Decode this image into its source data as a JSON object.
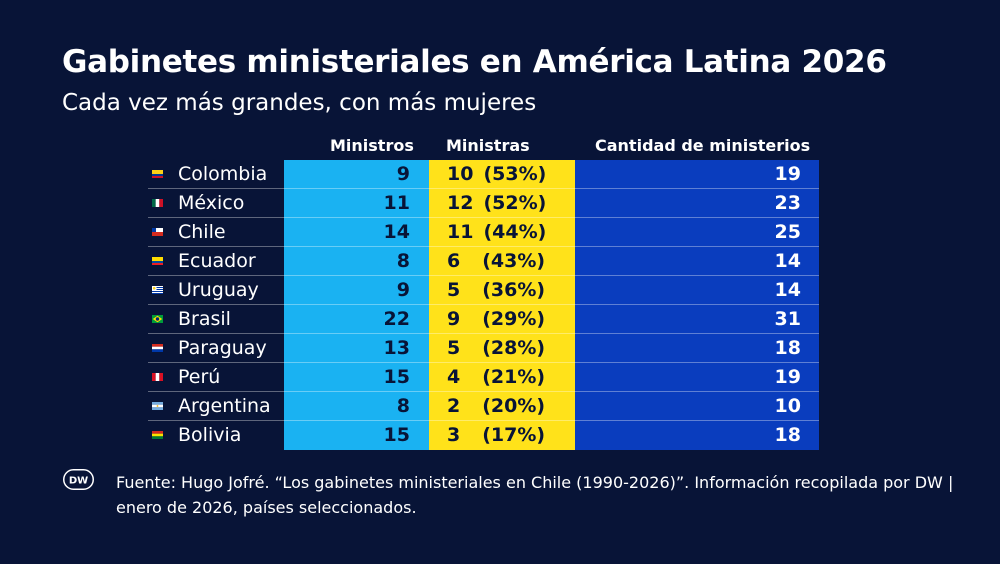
{
  "title": "Gabinetes ministeriales en América Latina 2026",
  "subtitle": "Cada vez más grandes, con más mujeres",
  "colors": {
    "background": "#081437",
    "ministros": "#1ab2f2",
    "ministras": "#ffe21a",
    "cantidad": "#0a3dbe"
  },
  "chart_data": {
    "type": "table",
    "columns": [
      "Ministros",
      "Ministras",
      "Cantidad de ministerios"
    ],
    "rows": [
      {
        "country": "Colombia",
        "flag": "colombia-flag-icon",
        "ministros": 9,
        "ministras": 10,
        "pct": "(53%)",
        "cantidad": 19
      },
      {
        "country": "México",
        "flag": "mexico-flag-icon",
        "ministros": 11,
        "ministras": 12,
        "pct": "(52%)",
        "cantidad": 23
      },
      {
        "country": "Chile",
        "flag": "chile-flag-icon",
        "ministros": 14,
        "ministras": 11,
        "pct": "(44%)",
        "cantidad": 25
      },
      {
        "country": "Ecuador",
        "flag": "ecuador-flag-icon",
        "ministros": 8,
        "ministras": 6,
        "pct": "(43%)",
        "cantidad": 14
      },
      {
        "country": "Uruguay",
        "flag": "uruguay-flag-icon",
        "ministros": 9,
        "ministras": 5,
        "pct": "(36%)",
        "cantidad": 14
      },
      {
        "country": "Brasil",
        "flag": "brasil-flag-icon",
        "ministros": 22,
        "ministras": 9,
        "pct": "(29%)",
        "cantidad": 31
      },
      {
        "country": "Paraguay",
        "flag": "paraguay-flag-icon",
        "ministros": 13,
        "ministras": 5,
        "pct": "(28%)",
        "cantidad": 18
      },
      {
        "country": "Perú",
        "flag": "peru-flag-icon",
        "ministros": 15,
        "ministras": 4,
        "pct": "(21%)",
        "cantidad": 19
      },
      {
        "country": "Argentina",
        "flag": "argentina-flag-icon",
        "ministros": 8,
        "ministras": 2,
        "pct": "(20%)",
        "cantidad": 10
      },
      {
        "country": "Bolivia",
        "flag": "bolivia-flag-icon",
        "ministros": 15,
        "ministras": 3,
        "pct": "(17%)",
        "cantidad": 18
      }
    ]
  },
  "source": "Fuente: Hugo Jofré. “Los gabinetes ministeriales en Chile (1990-2026)”. Información recopilada por DW | enero de 2026, países seleccionados.",
  "logo": "DW"
}
